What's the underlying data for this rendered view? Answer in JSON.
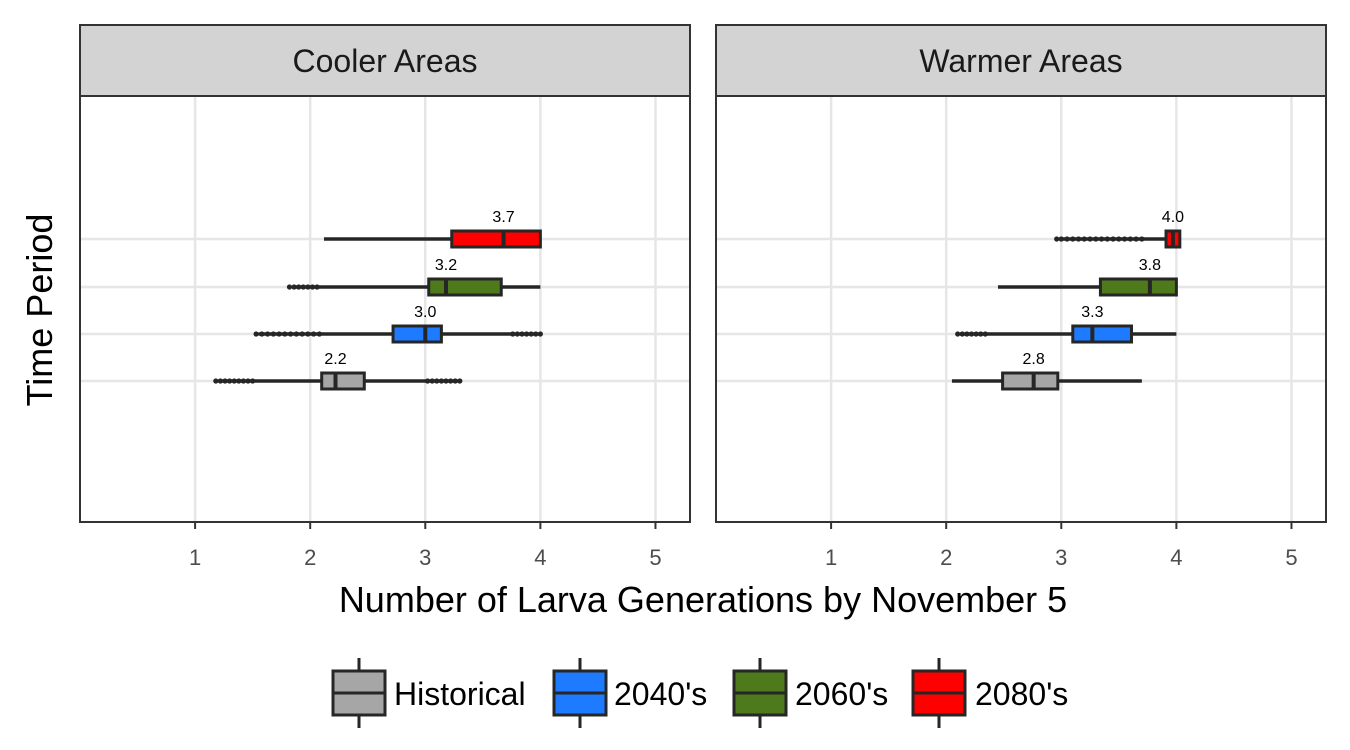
{
  "chart_data": {
    "type": "boxplot",
    "orientation": "horizontal",
    "xlabel": "Number of Larva Generations by November 5",
    "ylabel": "Time Period",
    "xlim": [
      0,
      5.3
    ],
    "x_ticks": [
      1,
      2,
      3,
      4,
      5
    ],
    "grid": true,
    "legend_position": "bottom",
    "series": [
      {
        "name": "Historical",
        "color": "#A6A6A6"
      },
      {
        "name": "2040's",
        "color": "#1E7BFF"
      },
      {
        "name": "2060's",
        "color": "#4E7A1C"
      },
      {
        "name": "2080's",
        "color": "#FF0000"
      }
    ],
    "panels": [
      {
        "title": "Cooler Areas",
        "boxes": [
          {
            "series": "Historical",
            "label": "2.2",
            "whisker_low": 1.2,
            "q1": 2.1,
            "median": 2.22,
            "q3": 2.47,
            "whisker_high": 3.3,
            "outliers": [
              1.18,
              1.22,
              1.26,
              1.3,
              1.34,
              1.38,
              1.42,
              1.46,
              1.5,
              3.02,
              3.06,
              3.1,
              3.14,
              3.18,
              3.22,
              3.26,
              3.3
            ]
          },
          {
            "series": "2040's",
            "label": "3.0",
            "whisker_low": 1.55,
            "q1": 2.72,
            "median": 3.0,
            "q3": 3.14,
            "whisker_high": 4.0,
            "outliers": [
              1.53,
              1.58,
              1.63,
              1.68,
              1.73,
              1.78,
              1.83,
              1.88,
              1.93,
              1.98,
              2.03,
              2.08,
              3.76,
              3.8,
              3.84,
              3.88,
              3.92,
              3.96,
              4.0
            ]
          },
          {
            "series": "2060's",
            "label": "3.2",
            "whisker_low": 1.85,
            "q1": 3.03,
            "median": 3.18,
            "q3": 3.66,
            "whisker_high": 4.0,
            "outliers": [
              1.82,
              1.86,
              1.9,
              1.94,
              1.98,
              2.02,
              2.06
            ]
          },
          {
            "series": "2080's",
            "label": "3.7",
            "whisker_low": 2.12,
            "q1": 3.23,
            "median": 3.68,
            "q3": 4.0,
            "whisker_high": 4.0,
            "outliers": []
          }
        ]
      },
      {
        "title": "Warmer Areas",
        "boxes": [
          {
            "series": "Historical",
            "label": "2.8",
            "whisker_low": 2.05,
            "q1": 2.49,
            "median": 2.76,
            "q3": 2.97,
            "whisker_high": 3.7,
            "outliers": []
          },
          {
            "series": "2040's",
            "label": "3.3",
            "whisker_low": 2.12,
            "q1": 3.1,
            "median": 3.27,
            "q3": 3.61,
            "whisker_high": 4.0,
            "outliers": [
              2.1,
              2.14,
              2.18,
              2.22,
              2.26,
              2.3,
              2.34
            ]
          },
          {
            "series": "2060's",
            "label": "3.8",
            "whisker_low": 2.45,
            "q1": 3.34,
            "median": 3.77,
            "q3": 4.0,
            "whisker_high": 4.0,
            "outliers": []
          },
          {
            "series": "2080's",
            "label": "4.0",
            "whisker_low": 2.98,
            "q1": 3.91,
            "median": 3.97,
            "q3": 4.03,
            "whisker_high": 4.03,
            "outliers": [
              2.96,
              3.0,
              3.05,
              3.1,
              3.15,
              3.2,
              3.25,
              3.3,
              3.35,
              3.4,
              3.45,
              3.5,
              3.55,
              3.6,
              3.65,
              3.7
            ]
          }
        ]
      }
    ]
  }
}
